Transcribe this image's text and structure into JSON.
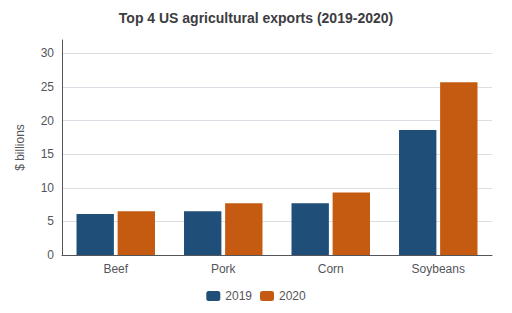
{
  "chart_data": {
    "type": "bar",
    "title": "Top 4 US agricultural exports (2019-2020)",
    "categories": [
      "Beef",
      "Pork",
      "Corn",
      "Soybeans"
    ],
    "series": [
      {
        "name": "2019",
        "color": "#1F4E79",
        "values": [
          6.1,
          6.5,
          7.7,
          18.6
        ]
      },
      {
        "name": "2020",
        "color": "#C55A11",
        "values": [
          6.5,
          7.7,
          9.3,
          25.7
        ]
      }
    ],
    "ylabel": "$ billions",
    "ylim": [
      0,
      32
    ],
    "yticks": [
      0,
      5,
      10,
      15,
      20,
      25,
      30
    ],
    "grid": true,
    "legend": "bottom"
  }
}
